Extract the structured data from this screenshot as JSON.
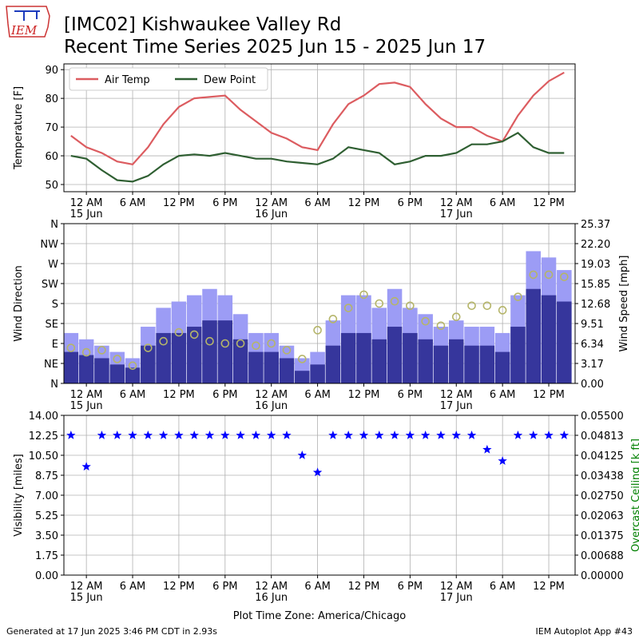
{
  "header": {
    "logo": "IEM",
    "title": "[IMC02] Kishwaukee Valley Rd",
    "subtitle": "Recent Time Series 2025 Jun 15 - 2025 Jun 17"
  },
  "footer": {
    "left": "Generated at 17 Jun 2025 3:46 PM CDT in 2.93s",
    "right": "IEM Autoplot App #43"
  },
  "chart_data": [
    {
      "type": "line",
      "ylabel": "Temperature [F]",
      "grid": true,
      "legend": "upper left",
      "xlim": [
        "2025-06-14T21:05",
        "2025-06-17T15:25"
      ],
      "xticks": [
        {
          "value": "2025-06-15T00:00",
          "label": "12 AM\n15 Jun"
        },
        {
          "value": "2025-06-15T06:00",
          "label": "6 AM"
        },
        {
          "value": "2025-06-15T12:00",
          "label": "12 PM"
        },
        {
          "value": "2025-06-15T18:00",
          "label": "6 PM"
        },
        {
          "value": "2025-06-16T00:00",
          "label": "12 AM\n16 Jun"
        },
        {
          "value": "2025-06-16T06:00",
          "label": "6 AM"
        },
        {
          "value": "2025-06-16T12:00",
          "label": "12 PM"
        },
        {
          "value": "2025-06-16T18:00",
          "label": "6 PM"
        },
        {
          "value": "2025-06-17T00:00",
          "label": "12 AM\n17 Jun"
        },
        {
          "value": "2025-06-17T06:00",
          "label": "6 AM"
        },
        {
          "value": "2025-06-17T12:00",
          "label": "12 PM"
        }
      ],
      "ylim": [
        47.5,
        92
      ],
      "yticks": [
        50,
        60,
        70,
        80,
        90
      ],
      "x": [
        "2025-06-14T22:00",
        "2025-06-15T00:00",
        "2025-06-15T02:00",
        "2025-06-15T04:00",
        "2025-06-15T06:00",
        "2025-06-15T08:00",
        "2025-06-15T10:00",
        "2025-06-15T12:00",
        "2025-06-15T14:00",
        "2025-06-15T16:00",
        "2025-06-15T18:00",
        "2025-06-15T20:00",
        "2025-06-15T22:00",
        "2025-06-16T00:00",
        "2025-06-16T02:00",
        "2025-06-16T04:00",
        "2025-06-16T06:00",
        "2025-06-16T08:00",
        "2025-06-16T10:00",
        "2025-06-16T12:00",
        "2025-06-16T14:00",
        "2025-06-16T16:00",
        "2025-06-16T18:00",
        "2025-06-16T20:00",
        "2025-06-16T22:00",
        "2025-06-17T00:00",
        "2025-06-17T02:00",
        "2025-06-17T04:00",
        "2025-06-17T06:00",
        "2025-06-17T08:00",
        "2025-06-17T10:00",
        "2025-06-17T12:00",
        "2025-06-17T14:00"
      ],
      "series": [
        {
          "name": "Air Temp",
          "color": "#dc5c60",
          "values": [
            67,
            63,
            61,
            58,
            57,
            63,
            71,
            77,
            80,
            80.5,
            81,
            76,
            72,
            68,
            66,
            63,
            62,
            71,
            78,
            81,
            85,
            85.5,
            84,
            78,
            73,
            70,
            70,
            67,
            65,
            74,
            81,
            86,
            89
          ]
        },
        {
          "name": "Dew Point",
          "color": "#2f5f32",
          "values": [
            60,
            59,
            55,
            51.5,
            51,
            53,
            57,
            60,
            60.5,
            60,
            61,
            60,
            59,
            59,
            58,
            57.5,
            57,
            59,
            63,
            62,
            61,
            57,
            58,
            60,
            60,
            61,
            64,
            64,
            65,
            68,
            63,
            61,
            61
          ]
        }
      ]
    },
    {
      "type": "combo",
      "ylabel": "Wind Direction",
      "y2label": "Wind Speed [mph]",
      "grid": true,
      "xlim": [
        "2025-06-14T21:05",
        "2025-06-17T15:25"
      ],
      "xticks": [
        {
          "value": "2025-06-15T00:00",
          "label": "12 AM\n15 Jun"
        },
        {
          "value": "2025-06-15T06:00",
          "label": "6 AM"
        },
        {
          "value": "2025-06-15T12:00",
          "label": "12 PM"
        },
        {
          "value": "2025-06-15T18:00",
          "label": "6 PM"
        },
        {
          "value": "2025-06-16T00:00",
          "label": "12 AM\n16 Jun"
        },
        {
          "value": "2025-06-16T06:00",
          "label": "6 AM"
        },
        {
          "value": "2025-06-16T12:00",
          "label": "12 PM"
        },
        {
          "value": "2025-06-16T18:00",
          "label": "6 PM"
        },
        {
          "value": "2025-06-17T00:00",
          "label": "12 AM\n17 Jun"
        },
        {
          "value": "2025-06-17T06:00",
          "label": "6 AM"
        },
        {
          "value": "2025-06-17T12:00",
          "label": "12 PM"
        }
      ],
      "ylim": [
        0,
        360
      ],
      "yticks": [
        {
          "value": 0,
          "label": "N"
        },
        {
          "value": 45,
          "label": "NE"
        },
        {
          "value": 90,
          "label": "E"
        },
        {
          "value": 135,
          "label": "SE"
        },
        {
          "value": 180,
          "label": "S"
        },
        {
          "value": 225,
          "label": "SW"
        },
        {
          "value": 270,
          "label": "W"
        },
        {
          "value": 315,
          "label": "NW"
        },
        {
          "value": 360,
          "label": "N"
        }
      ],
      "y2lim": [
        0,
        25.37
      ],
      "y2ticks": [
        {
          "value": 0,
          "label": "0.00"
        },
        {
          "value": 3.17,
          "label": "3.17"
        },
        {
          "value": 6.34,
          "label": "6.34"
        },
        {
          "value": 9.51,
          "label": "9.51"
        },
        {
          "value": 12.68,
          "label": "12.68"
        },
        {
          "value": 15.85,
          "label": "15.85"
        },
        {
          "value": 19.03,
          "label": "19.03"
        },
        {
          "value": 22.2,
          "label": "22.20"
        },
        {
          "value": 25.37,
          "label": "25.37"
        }
      ],
      "x": [
        "2025-06-14T22:00",
        "2025-06-15T00:00",
        "2025-06-15T02:00",
        "2025-06-15T04:00",
        "2025-06-15T06:00",
        "2025-06-15T08:00",
        "2025-06-15T10:00",
        "2025-06-15T12:00",
        "2025-06-15T14:00",
        "2025-06-15T16:00",
        "2025-06-15T18:00",
        "2025-06-15T20:00",
        "2025-06-15T22:00",
        "2025-06-16T00:00",
        "2025-06-16T02:00",
        "2025-06-16T04:00",
        "2025-06-16T06:00",
        "2025-06-16T08:00",
        "2025-06-16T10:00",
        "2025-06-16T12:00",
        "2025-06-16T14:00",
        "2025-06-16T16:00",
        "2025-06-16T18:00",
        "2025-06-16T20:00",
        "2025-06-16T22:00",
        "2025-06-17T00:00",
        "2025-06-17T02:00",
        "2025-06-17T04:00",
        "2025-06-17T06:00",
        "2025-06-17T08:00",
        "2025-06-17T10:00",
        "2025-06-17T12:00",
        "2025-06-17T14:00"
      ],
      "series": [
        {
          "kind": "bar",
          "axis": "y2",
          "color": "#9c9cf5",
          "values": [
            8,
            7,
            6,
            5,
            4,
            9,
            12,
            13,
            14,
            15,
            14,
            11,
            8,
            8,
            6,
            4,
            5,
            10,
            14,
            14,
            12,
            15,
            12,
            11,
            9,
            10,
            9,
            9,
            8,
            14,
            21,
            20,
            18
          ]
        },
        {
          "kind": "bar",
          "axis": "y2",
          "color": "#36369c",
          "values": [
            5,
            4.5,
            4,
            3,
            2.5,
            6,
            8,
            8,
            9,
            10,
            10,
            7,
            5,
            5,
            4,
            2,
            3,
            6,
            8,
            8,
            7,
            9,
            8,
            7,
            6,
            7,
            6,
            6,
            5,
            9,
            15,
            14,
            13
          ]
        },
        {
          "kind": "scatter",
          "color": "#b5b56a",
          "values": [
            80,
            70,
            75,
            55,
            40,
            80,
            95,
            115,
            110,
            95,
            90,
            90,
            85,
            90,
            75,
            55,
            120,
            145,
            170,
            200,
            180,
            185,
            175,
            140,
            130,
            150,
            175,
            175,
            165,
            195,
            245,
            245,
            240
          ]
        }
      ]
    },
    {
      "type": "scatter",
      "ylabel": "Visibility [miles]",
      "y2label": "Overcast Ceiling [k ft]",
      "y2label_color": "#008000",
      "xlabel": "Plot Time Zone: America/Chicago",
      "grid": true,
      "xlim": [
        "2025-06-14T21:05",
        "2025-06-17T15:25"
      ],
      "xticks": [
        {
          "value": "2025-06-15T00:00",
          "label": "12 AM\n15 Jun"
        },
        {
          "value": "2025-06-15T06:00",
          "label": "6 AM"
        },
        {
          "value": "2025-06-15T12:00",
          "label": "12 PM"
        },
        {
          "value": "2025-06-15T18:00",
          "label": "6 PM"
        },
        {
          "value": "2025-06-16T00:00",
          "label": "12 AM\n16 Jun"
        },
        {
          "value": "2025-06-16T06:00",
          "label": "6 AM"
        },
        {
          "value": "2025-06-16T12:00",
          "label": "12 PM"
        },
        {
          "value": "2025-06-16T18:00",
          "label": "6 PM"
        },
        {
          "value": "2025-06-17T00:00",
          "label": "12 AM\n17 Jun"
        },
        {
          "value": "2025-06-17T06:00",
          "label": "6 AM"
        },
        {
          "value": "2025-06-17T12:00",
          "label": "12 PM"
        }
      ],
      "ylim": [
        0,
        14
      ],
      "yticks": [
        {
          "value": 0,
          "label": "0.00"
        },
        {
          "value": 1.75,
          "label": "1.75"
        },
        {
          "value": 3.5,
          "label": "3.50"
        },
        {
          "value": 5.25,
          "label": "5.25"
        },
        {
          "value": 7,
          "label": "7.00"
        },
        {
          "value": 8.75,
          "label": "8.75"
        },
        {
          "value": 10.5,
          "label": "10.50"
        },
        {
          "value": 12.25,
          "label": "12.25"
        },
        {
          "value": 14,
          "label": "14.00"
        }
      ],
      "y2lim": [
        0,
        0.055
      ],
      "y2ticks": [
        {
          "value": 0,
          "label": "0.00000"
        },
        {
          "value": 0.006875,
          "label": "0.00688"
        },
        {
          "value": 0.01375,
          "label": "0.01375"
        },
        {
          "value": 0.020625,
          "label": "0.02063"
        },
        {
          "value": 0.0275,
          "label": "0.02750"
        },
        {
          "value": 0.034375,
          "label": "0.03438"
        },
        {
          "value": 0.04125,
          "label": "0.04125"
        },
        {
          "value": 0.048125,
          "label": "0.04813"
        },
        {
          "value": 0.055,
          "label": "0.05500"
        }
      ],
      "x": [
        "2025-06-14T22:00",
        "2025-06-15T00:00",
        "2025-06-15T02:00",
        "2025-06-15T04:00",
        "2025-06-15T06:00",
        "2025-06-15T08:00",
        "2025-06-15T10:00",
        "2025-06-15T12:00",
        "2025-06-15T14:00",
        "2025-06-15T16:00",
        "2025-06-15T18:00",
        "2025-06-15T20:00",
        "2025-06-15T22:00",
        "2025-06-16T00:00",
        "2025-06-16T02:00",
        "2025-06-16T04:00",
        "2025-06-16T06:00",
        "2025-06-16T08:00",
        "2025-06-16T10:00",
        "2025-06-16T12:00",
        "2025-06-16T14:00",
        "2025-06-16T16:00",
        "2025-06-16T18:00",
        "2025-06-16T20:00",
        "2025-06-16T22:00",
        "2025-06-17T00:00",
        "2025-06-17T02:00",
        "2025-06-17T04:00",
        "2025-06-17T06:00",
        "2025-06-17T08:00",
        "2025-06-17T10:00",
        "2025-06-17T12:00",
        "2025-06-17T14:00"
      ],
      "series": [
        {
          "kind": "star",
          "color": "#0000ff",
          "values": [
            12.25,
            9.5,
            12.25,
            12.25,
            12.25,
            12.25,
            12.25,
            12.25,
            12.25,
            12.25,
            12.25,
            12.25,
            12.25,
            12.25,
            12.25,
            10.5,
            9,
            12.25,
            12.25,
            12.25,
            12.25,
            12.25,
            12.25,
            12.25,
            12.25,
            12.25,
            12.25,
            11,
            10,
            12.25,
            12.25,
            12.25,
            12.25
          ]
        }
      ]
    }
  ]
}
